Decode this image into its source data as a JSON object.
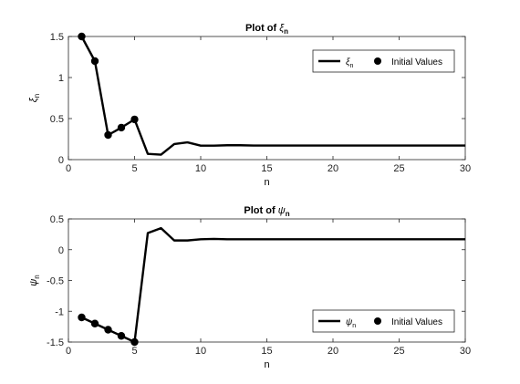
{
  "chart_data": [
    {
      "type": "line",
      "title_prefix": "Plot of ",
      "title_symbol": "ξ",
      "title_sub": "n",
      "xlabel": "n",
      "ylabel_symbol": "ξ",
      "ylabel_sub": "n",
      "xlim": [
        0,
        30
      ],
      "ylim": [
        0,
        1.5
      ],
      "xticks": [
        "0",
        "5",
        "10",
        "15",
        "20",
        "25",
        "30"
      ],
      "yticks": [
        "0",
        "0.5",
        "1",
        "1.5"
      ],
      "legend_position": "top-right",
      "series": [
        {
          "name": "ξn",
          "style": "line",
          "color": "#000000",
          "x": [
            1,
            2,
            3,
            4,
            5,
            6,
            7,
            8,
            9,
            10,
            11,
            12,
            13,
            14,
            15,
            16,
            17,
            18,
            19,
            20,
            21,
            22,
            23,
            24,
            25,
            26,
            27,
            28,
            29,
            30
          ],
          "y": [
            1.5,
            1.2,
            0.3,
            0.39,
            0.49,
            0.07,
            0.06,
            0.19,
            0.21,
            0.17,
            0.17,
            0.175,
            0.175,
            0.172,
            0.172,
            0.172,
            0.172,
            0.172,
            0.172,
            0.172,
            0.172,
            0.172,
            0.172,
            0.172,
            0.172,
            0.172,
            0.172,
            0.172,
            0.172,
            0.172
          ]
        },
        {
          "name": "Initial Values",
          "style": "marker",
          "color": "#000000",
          "x": [
            1,
            2,
            3,
            4,
            5
          ],
          "y": [
            1.5,
            1.2,
            0.3,
            0.39,
            0.49
          ]
        }
      ]
    },
    {
      "type": "line",
      "title_prefix": "Plot of ",
      "title_symbol": "ψ",
      "title_sub": "n",
      "xlabel": "n",
      "ylabel_symbol": "ψ",
      "ylabel_sub": "n",
      "xlim": [
        0,
        30
      ],
      "ylim": [
        -1.5,
        0.5
      ],
      "xticks": [
        "0",
        "5",
        "10",
        "15",
        "20",
        "25",
        "30"
      ],
      "yticks": [
        "-1.5",
        "-1",
        "-0.5",
        "0",
        "0.5"
      ],
      "legend_position": "bottom-right",
      "series": [
        {
          "name": "ψn",
          "style": "line",
          "color": "#000000",
          "x": [
            1,
            2,
            3,
            4,
            5,
            6,
            7,
            8,
            9,
            10,
            11,
            12,
            13,
            14,
            15,
            16,
            17,
            18,
            19,
            20,
            21,
            22,
            23,
            24,
            25,
            26,
            27,
            28,
            29,
            30
          ],
          "y": [
            -1.1,
            -1.2,
            -1.3,
            -1.4,
            -1.5,
            0.27,
            0.35,
            0.15,
            0.15,
            0.17,
            0.175,
            0.17,
            0.17,
            0.17,
            0.17,
            0.17,
            0.17,
            0.17,
            0.17,
            0.17,
            0.17,
            0.17,
            0.17,
            0.17,
            0.17,
            0.17,
            0.17,
            0.17,
            0.17,
            0.17
          ]
        },
        {
          "name": "Initial Values",
          "style": "marker",
          "color": "#000000",
          "x": [
            1,
            2,
            3,
            4,
            5
          ],
          "y": [
            -1.1,
            -1.2,
            -1.3,
            -1.4,
            -1.5
          ]
        }
      ]
    }
  ]
}
